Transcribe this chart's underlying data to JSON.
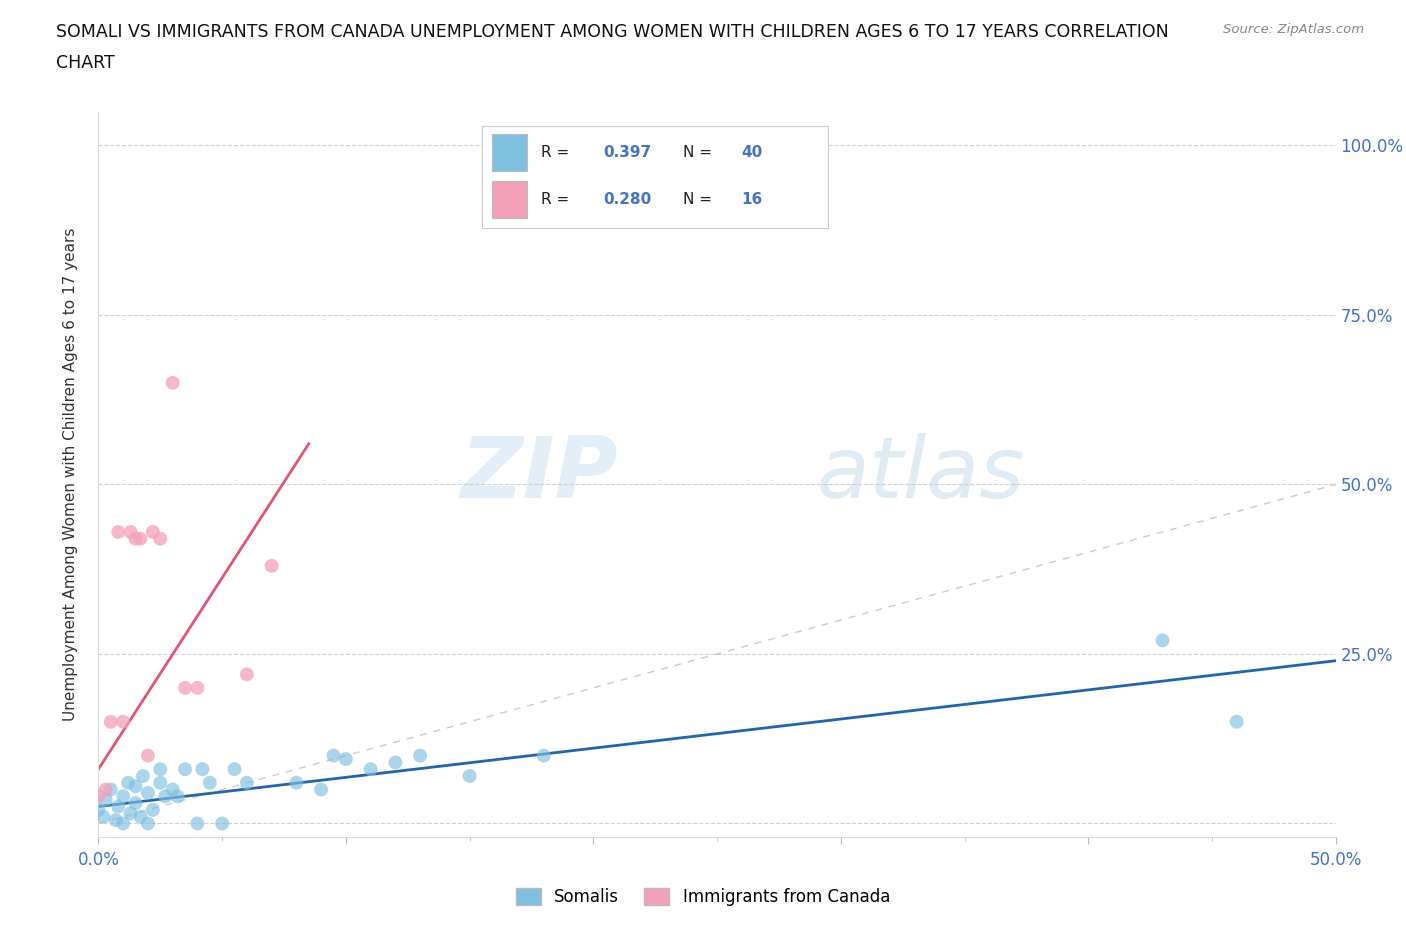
{
  "title_line1": "SOMALI VS IMMIGRANTS FROM CANADA UNEMPLOYMENT AMONG WOMEN WITH CHILDREN AGES 6 TO 17 YEARS CORRELATION",
  "title_line2": "CHART",
  "source": "Source: ZipAtlas.com",
  "ylabel": "Unemployment Among Women with Children Ages 6 to 17 years",
  "xlim": [
    0.0,
    0.5
  ],
  "ylim": [
    -0.02,
    1.05
  ],
  "xtick_vals": [
    0.0,
    0.1,
    0.2,
    0.3,
    0.4,
    0.5
  ],
  "xtick_labels": [
    "0.0%",
    "",
    "",
    "",
    "",
    "50.0%"
  ],
  "ytick_vals": [
    0.0,
    0.25,
    0.5,
    0.75,
    1.0
  ],
  "ytick_labels": [
    "",
    "25.0%",
    "50.0%",
    "75.0%",
    "100.0%"
  ],
  "somali_color": "#7fbfdf",
  "canada_color": "#f4a0b8",
  "somali_R": 0.397,
  "somali_N": 40,
  "canada_R": 0.28,
  "canada_N": 16,
  "diagonal_color": "#cccccc",
  "trendline_somali_color": "#2166ac",
  "trendline_canada_color": "#e05575",
  "watermark_zip": "ZIP",
  "watermark_atlas": "atlas",
  "tick_color": "#4472c4",
  "somali_x": [
    0.0,
    0.002,
    0.003,
    0.005,
    0.007,
    0.008,
    0.01,
    0.01,
    0.012,
    0.013,
    0.015,
    0.015,
    0.017,
    0.018,
    0.02,
    0.02,
    0.022,
    0.025,
    0.025,
    0.027,
    0.03,
    0.032,
    0.035,
    0.04,
    0.042,
    0.045,
    0.05,
    0.055,
    0.06,
    0.08,
    0.09,
    0.095,
    0.1,
    0.11,
    0.12,
    0.13,
    0.15,
    0.18,
    0.43,
    0.46
  ],
  "somali_y": [
    0.02,
    0.01,
    0.035,
    0.05,
    0.005,
    0.025,
    0.0,
    0.04,
    0.06,
    0.015,
    0.03,
    0.055,
    0.01,
    0.07,
    0.0,
    0.045,
    0.02,
    0.06,
    0.08,
    0.04,
    0.05,
    0.04,
    0.08,
    0.0,
    0.08,
    0.06,
    0.0,
    0.08,
    0.06,
    0.06,
    0.05,
    0.1,
    0.095,
    0.08,
    0.09,
    0.1,
    0.07,
    0.1,
    0.27,
    0.15
  ],
  "canada_x": [
    0.0,
    0.003,
    0.005,
    0.008,
    0.01,
    0.013,
    0.015,
    0.017,
    0.02,
    0.022,
    0.025,
    0.03,
    0.035,
    0.04,
    0.06,
    0.07
  ],
  "canada_y": [
    0.04,
    0.05,
    0.15,
    0.43,
    0.15,
    0.43,
    0.42,
    0.42,
    0.1,
    0.43,
    0.42,
    0.65,
    0.2,
    0.2,
    0.22,
    0.38
  ],
  "somali_trend_x0": 0.0,
  "somali_trend_x1": 0.5,
  "somali_trend_y0": 0.025,
  "somali_trend_y1": 0.24,
  "canada_trend_x0": 0.0,
  "canada_trend_x1": 0.085,
  "canada_trend_y0": 0.08,
  "canada_trend_y1": 0.56
}
